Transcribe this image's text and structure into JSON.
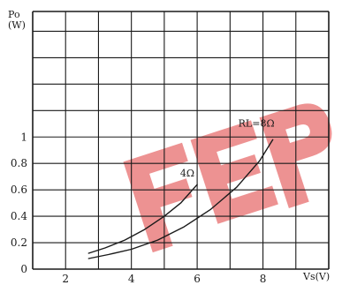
{
  "chart_data": {
    "type": "line",
    "title": "",
    "ylabel": "Po\n(W)",
    "xlabel": "Vs(V)",
    "xlim": [
      1,
      10
    ],
    "ylim": [
      0,
      1.95
    ],
    "x_ticks": [
      2,
      4,
      6,
      8
    ],
    "y_ticks": [
      0,
      0.2,
      0.4,
      0.6,
      0.8,
      1
    ],
    "grid": true,
    "series": [
      {
        "name": "4Ω",
        "x": [
          2.7,
          3.2,
          3.8,
          4.4,
          5.0,
          5.5,
          6.0
        ],
        "y": [
          0.12,
          0.16,
          0.22,
          0.3,
          0.4,
          0.5,
          0.64
        ]
      },
      {
        "name": "RL=8Ω",
        "x": [
          2.7,
          3.3,
          4.0,
          4.8,
          5.6,
          6.4,
          7.2,
          7.9,
          8.3
        ],
        "y": [
          0.08,
          0.11,
          0.15,
          0.22,
          0.32,
          0.45,
          0.62,
          0.82,
          0.98
        ]
      }
    ],
    "annotations": [
      {
        "text": "4Ω",
        "x": 5.7,
        "y": 0.7
      },
      {
        "text": "RL=8Ω",
        "x": 7.8,
        "y": 1.08
      }
    ]
  },
  "watermark": {
    "text": "FEP",
    "color": "#e03a3a"
  }
}
